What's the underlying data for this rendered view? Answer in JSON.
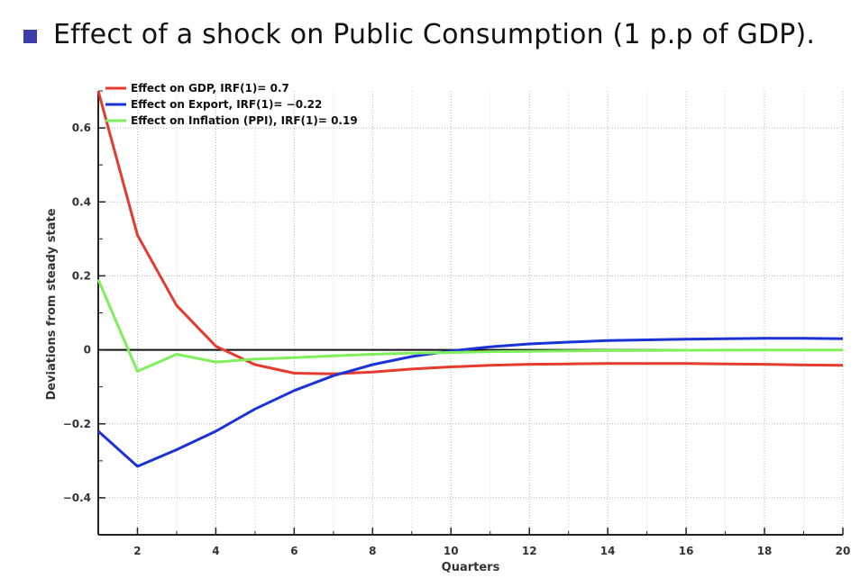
{
  "slide": {
    "title": "Effect of a shock on Public Consumption (1 p.p of GDP).",
    "bullet_color": "#3d3daa"
  },
  "chart_data": {
    "type": "line",
    "title": "",
    "xlabel": "Quarters",
    "ylabel": "Deviations from steady state",
    "xlim": [
      1,
      20
    ],
    "ylim": [
      -0.5,
      0.7
    ],
    "x_ticks": [
      2,
      4,
      6,
      8,
      10,
      12,
      14,
      16,
      18,
      20
    ],
    "y_ticks": [
      -0.4,
      -0.2,
      0,
      0.2,
      0.4,
      0.6
    ],
    "y_tick_labels": [
      "−0.4",
      "−0.2",
      "0",
      "0.2",
      "0.4",
      "0.6"
    ],
    "grid": true,
    "legend_position": "top-left",
    "zero_line": true,
    "x": [
      1,
      2,
      3,
      4,
      5,
      6,
      7,
      8,
      9,
      10,
      11,
      12,
      13,
      14,
      15,
      16,
      17,
      18,
      19,
      20
    ],
    "series": [
      {
        "name": "Effect on GDP, IRF(1)= 0.7",
        "color": "#e53a2e",
        "values": [
          0.7,
          0.31,
          0.12,
          0.01,
          -0.04,
          -0.063,
          -0.065,
          -0.06,
          -0.052,
          -0.046,
          -0.042,
          -0.039,
          -0.038,
          -0.037,
          -0.037,
          -0.037,
          -0.038,
          -0.039,
          -0.041,
          -0.042
        ]
      },
      {
        "name": "Effect on Export, IRF(1)= −0.22",
        "color": "#1a32d6",
        "values": [
          -0.22,
          -0.315,
          -0.27,
          -0.22,
          -0.16,
          -0.11,
          -0.07,
          -0.04,
          -0.018,
          -0.003,
          0.008,
          0.016,
          0.021,
          0.025,
          0.027,
          0.029,
          0.03,
          0.031,
          0.031,
          0.03
        ]
      },
      {
        "name": "Effect on Inflation (PPI), IRF(1)= 0.19",
        "color": "#7ef05a",
        "values": [
          0.19,
          -0.058,
          -0.012,
          -0.033,
          -0.025,
          -0.021,
          -0.016,
          -0.012,
          -0.009,
          -0.007,
          -0.005,
          -0.004,
          -0.003,
          -0.002,
          -0.0015,
          -0.001,
          -0.0008,
          -0.0006,
          -0.0005,
          -0.0004
        ]
      }
    ]
  }
}
